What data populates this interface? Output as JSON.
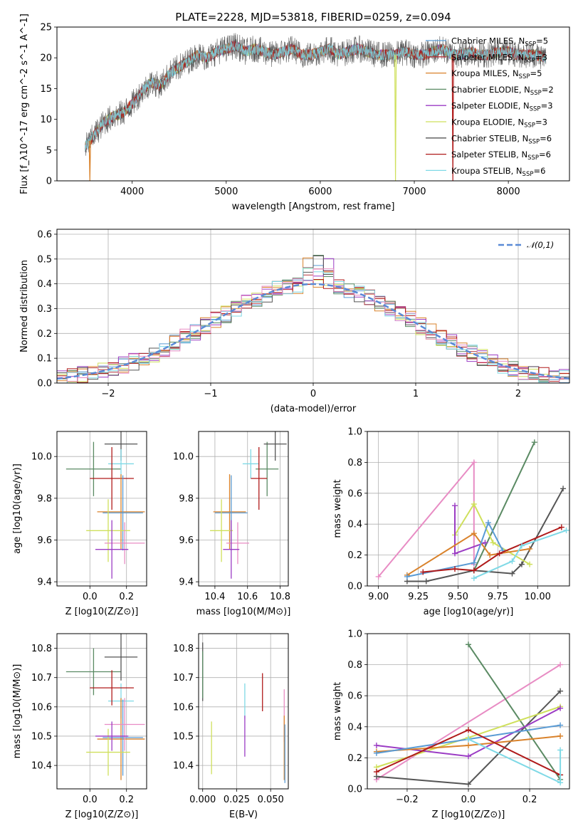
{
  "figure": {
    "title": "PLATE=2228, MJD=53818, FIBERID=0259, z=0.094"
  },
  "chart_data": [
    {
      "id": "spectrum",
      "type": "line",
      "xlabel": "wavelength [Angstrom, rest frame]",
      "ylabel": "Flux [f_λ10^-17 erg cm^-2 s^-1 A^-1]",
      "xlim": [
        3200,
        8650
      ],
      "ylim": [
        0,
        25
      ],
      "xticks": [
        4000,
        5000,
        6000,
        7000,
        8000
      ],
      "yticks": [
        0,
        5,
        10,
        15,
        20,
        25
      ],
      "legend_position": "right",
      "series": [
        {
          "name": "Chabrier MILES, N_SSP=5",
          "color": "#5a9bd4"
        },
        {
          "name": "Salpeter MILES, N_SSP=3",
          "color": "#b6343a"
        },
        {
          "name": "Kroupa MILES, N_SSP=5",
          "color": "#d9822b"
        },
        {
          "name": "Chabrier ELODIE, N_SSP=2",
          "color": "#5a8a63"
        },
        {
          "name": "Salpeter ELODIE, N_SSP=3",
          "color": "#9b3cc4"
        },
        {
          "name": "Kroupa ELODIE, N_SSP=3",
          "color": "#cfe05c"
        },
        {
          "name": "Chabrier STELIB, N_SSP=6",
          "color": "#555555"
        },
        {
          "name": "Salpeter STELIB, N_SSP=6",
          "color": "#b01a1a"
        },
        {
          "name": "Kroupa STELIB, N_SSP=6",
          "color": "#7fd9e6"
        }
      ],
      "envelope": {
        "x": [
          3500,
          3600,
          3700,
          3800,
          3900,
          4000,
          4100,
          4200,
          4300,
          4400,
          4500,
          4600,
          4700,
          4800,
          4900,
          5000,
          5100,
          5200,
          5300,
          5400,
          5500,
          5600,
          5700,
          5800,
          5900,
          6000,
          6100,
          6200,
          6300,
          6400,
          6500,
          6600,
          6700,
          6800,
          6900,
          7000,
          7100,
          7200,
          7300,
          7400,
          7500,
          7600,
          7700,
          7800,
          7900,
          8000,
          8100,
          8200,
          8300,
          8400
        ],
        "y": [
          5.5,
          7.5,
          9.5,
          10.5,
          11,
          12.5,
          14.5,
          16,
          15.5,
          17.5,
          18.5,
          19.5,
          20.5,
          20,
          21,
          21.5,
          22,
          21,
          21.5,
          21,
          20.5,
          21,
          21.5,
          20.5,
          20.5,
          21,
          21.5,
          20.5,
          21,
          21.5,
          21,
          20.5,
          20.5,
          20.5,
          21,
          20.5,
          20.5,
          21,
          21.5,
          20.5,
          20.5,
          21,
          20.5,
          20.5,
          21,
          21,
          20.5,
          20.5,
          20.5,
          20
        ]
      },
      "absorption_dips": [
        {
          "x": 6800,
          "y": 0
        },
        {
          "x": 7410,
          "y": 0
        },
        {
          "x": 3550,
          "y": 0
        }
      ]
    },
    {
      "id": "residuals",
      "type": "line",
      "xlabel": "(data-model)/error",
      "ylabel": "Normed distribution",
      "xlim": [
        -2.5,
        2.5
      ],
      "ylim": [
        0,
        0.62
      ],
      "xticks": [
        -2,
        -1,
        0,
        1,
        2
      ],
      "yticks": [
        0.0,
        0.1,
        0.2,
        0.3,
        0.4,
        0.5,
        0.6
      ],
      "legend_position": "top-right",
      "series": [
        {
          "name": "𝒩(0,1)",
          "style": "dashed",
          "color": "#5a8ad6",
          "mu": 0,
          "sigma": 1
        }
      ]
    },
    {
      "id": "age_vs_Z",
      "type": "scatter",
      "xlabel": "Z [log10(Z/Z⊙)]",
      "ylabel": "age  [log10(age/yr)]",
      "xlim": [
        -0.18,
        0.31
      ],
      "ylim": [
        9.38,
        10.12
      ],
      "xticks": [
        0.0,
        0.2
      ],
      "yticks": [
        9.4,
        9.6,
        9.8,
        10.0
      ],
      "points": [
        {
          "x": 0.02,
          "y": 9.94,
          "xerr": 0.15,
          "yerr": 0.13,
          "color": "#5a8a63"
        },
        {
          "x": 0.17,
          "y": 10.06,
          "xerr": 0.09,
          "yerr": 0.08,
          "color": "#555555"
        },
        {
          "x": 0.17,
          "y": 9.965,
          "xerr": 0.07,
          "yerr": 0.07,
          "color": "#7fd9e6"
        },
        {
          "x": 0.12,
          "y": 9.895,
          "xerr": 0.12,
          "yerr": 0.15,
          "color": "#b01a1a"
        },
        {
          "x": 0.17,
          "y": 9.735,
          "xerr": 0.13,
          "yerr": 0.18,
          "color": "#d9822b"
        },
        {
          "x": 0.18,
          "y": 9.73,
          "xerr": 0.11,
          "yerr": 0.18,
          "color": "#5a9bd4"
        },
        {
          "x": 0.1,
          "y": 9.645,
          "xerr": 0.12,
          "yerr": 0.15,
          "color": "#cfe05c"
        },
        {
          "x": 0.19,
          "y": 9.585,
          "xerr": 0.11,
          "yerr": 0.1,
          "color": "#e88cc4"
        },
        {
          "x": 0.12,
          "y": 9.555,
          "xerr": 0.09,
          "yerr": 0.14,
          "color": "#9b3cc4"
        }
      ]
    },
    {
      "id": "age_vs_mass",
      "type": "scatter",
      "xlabel": "mass [log10(M/M⊙)]",
      "ylabel": "",
      "xlim": [
        10.3,
        10.85
      ],
      "ylim": [
        9.38,
        10.12
      ],
      "xticks": [
        10.4,
        10.6,
        10.8
      ],
      "yticks": [
        9.4,
        9.6,
        9.8,
        10.0
      ],
      "points": [
        {
          "x": 10.72,
          "y": 9.94,
          "xerr": 0.07,
          "yerr": 0.13,
          "color": "#5a8a63"
        },
        {
          "x": 10.77,
          "y": 10.06,
          "xerr": 0.07,
          "yerr": 0.08,
          "color": "#555555"
        },
        {
          "x": 10.62,
          "y": 9.965,
          "xerr": 0.05,
          "yerr": 0.07,
          "color": "#7fd9e6"
        },
        {
          "x": 10.67,
          "y": 9.895,
          "xerr": 0.05,
          "yerr": 0.15,
          "color": "#b01a1a"
        },
        {
          "x": 10.49,
          "y": 9.735,
          "xerr": 0.1,
          "yerr": 0.18,
          "color": "#d9822b"
        },
        {
          "x": 10.5,
          "y": 9.73,
          "xerr": 0.1,
          "yerr": 0.18,
          "color": "#5a9bd4"
        },
        {
          "x": 10.44,
          "y": 9.645,
          "xerr": 0.07,
          "yerr": 0.15,
          "color": "#cfe05c"
        },
        {
          "x": 10.54,
          "y": 9.585,
          "xerr": 0.07,
          "yerr": 0.1,
          "color": "#e88cc4"
        },
        {
          "x": 10.5,
          "y": 9.555,
          "xerr": 0.05,
          "yerr": 0.14,
          "color": "#9b3cc4"
        }
      ]
    },
    {
      "id": "weights_vs_age",
      "type": "line",
      "xlabel": "age  [log10(age/yr)]",
      "ylabel": "mass weight",
      "xlim": [
        8.93,
        10.2
      ],
      "ylim": [
        0.0,
        1.0
      ],
      "xticks": [
        9.0,
        9.25,
        9.5,
        9.75,
        10.0
      ],
      "yticks": [
        0.0,
        0.2,
        0.4,
        0.6,
        0.8,
        1.0
      ],
      "series": [
        {
          "color": "#e88cc4",
          "x": [
            9.0,
            9.6,
            9.6
          ],
          "y": [
            0.06,
            0.8,
            0.14
          ]
        },
        {
          "color": "#5a8a63",
          "x": [
            9.6,
            9.98
          ],
          "y": [
            0.1,
            0.93
          ]
        },
        {
          "color": "#555555",
          "x": [
            9.18,
            9.3,
            9.6,
            9.84,
            9.9,
            10.16
          ],
          "y": [
            0.03,
            0.03,
            0.1,
            0.08,
            0.14,
            0.63
          ]
        },
        {
          "color": "#cfe05c",
          "x": [
            9.48,
            9.6,
            9.72,
            9.95
          ],
          "y": [
            0.33,
            0.53,
            0.28,
            0.14
          ]
        },
        {
          "color": "#9b3cc4",
          "x": [
            9.48,
            9.48,
            9.67
          ],
          "y": [
            0.52,
            0.21,
            0.28
          ]
        },
        {
          "color": "#d9822b",
          "x": [
            9.18,
            9.6,
            9.7,
            9.95
          ],
          "y": [
            0.07,
            0.34,
            0.2,
            0.24
          ]
        },
        {
          "color": "#5a9bd4",
          "x": [
            9.18,
            9.6,
            9.69,
            9.78
          ],
          "y": [
            0.06,
            0.15,
            0.41,
            0.23
          ]
        },
        {
          "color": "#b01a1a",
          "x": [
            9.28,
            9.48,
            9.6,
            9.76,
            10.15
          ],
          "y": [
            0.09,
            0.11,
            0.1,
            0.21,
            0.38
          ]
        },
        {
          "color": "#7fd9e6",
          "x": [
            9.6,
            9.84,
            9.9,
            10.18
          ],
          "y": [
            0.05,
            0.16,
            0.26,
            0.36
          ]
        }
      ]
    },
    {
      "id": "mass_vs_Z",
      "type": "scatter",
      "xlabel": "Z [log10(Z/Z⊙)]",
      "ylabel": "mass [log10(M/M⊙)]",
      "xlim": [
        -0.18,
        0.31
      ],
      "ylim": [
        10.32,
        10.85
      ],
      "xticks": [
        0.0,
        0.2
      ],
      "yticks": [
        10.4,
        10.5,
        10.6,
        10.7,
        10.8
      ],
      "points": [
        {
          "x": 0.02,
          "y": 10.72,
          "xerr": 0.15,
          "yerr": 0.08,
          "color": "#5a8a63"
        },
        {
          "x": 0.17,
          "y": 10.77,
          "xerr": 0.09,
          "yerr": 0.08,
          "color": "#555555"
        },
        {
          "x": 0.17,
          "y": 10.62,
          "xerr": 0.07,
          "yerr": 0.06,
          "color": "#7fd9e6"
        },
        {
          "x": 0.12,
          "y": 10.665,
          "xerr": 0.12,
          "yerr": 0.06,
          "color": "#b01a1a"
        },
        {
          "x": 0.17,
          "y": 10.49,
          "xerr": 0.13,
          "yerr": 0.14,
          "color": "#d9822b"
        },
        {
          "x": 0.18,
          "y": 10.495,
          "xerr": 0.11,
          "yerr": 0.13,
          "color": "#5a9bd4"
        },
        {
          "x": 0.1,
          "y": 10.445,
          "xerr": 0.12,
          "yerr": 0.08,
          "color": "#cfe05c"
        },
        {
          "x": 0.19,
          "y": 10.54,
          "xerr": 0.11,
          "yerr": 0.09,
          "color": "#e88cc4"
        },
        {
          "x": 0.12,
          "y": 10.5,
          "xerr": 0.09,
          "yerr": 0.05,
          "color": "#9b3cc4"
        }
      ]
    },
    {
      "id": "mass_vs_ebv",
      "type": "scatter",
      "xlabel": "E(B-V)",
      "ylabel": "",
      "xlim": [
        -0.003,
        0.063
      ],
      "ylim": [
        10.32,
        10.85
      ],
      "xticks": [
        0.0,
        0.025,
        0.05
      ],
      "yticks": [
        10.4,
        10.5,
        10.6,
        10.7,
        10.8
      ],
      "points": [
        {
          "x": 0.0,
          "y": 10.72,
          "yerr": 0.1,
          "color": "#555555"
        },
        {
          "x": 0.0,
          "y": 10.71,
          "yerr": 0.08,
          "color": "#5a8a63"
        },
        {
          "x": 0.0065,
          "y": 10.46,
          "yerr": 0.09,
          "color": "#cfe05c"
        },
        {
          "x": 0.031,
          "y": 10.62,
          "yerr": 0.06,
          "color": "#7fd9e6"
        },
        {
          "x": 0.031,
          "y": 10.5,
          "yerr": 0.07,
          "color": "#9b3cc4"
        },
        {
          "x": 0.044,
          "y": 10.65,
          "yerr": 0.065,
          "color": "#b01a1a"
        },
        {
          "x": 0.06,
          "y": 10.57,
          "yerr": 0.09,
          "color": "#e88cc4"
        },
        {
          "x": 0.06,
          "y": 10.46,
          "yerr": 0.11,
          "color": "#d9822b"
        },
        {
          "x": 0.0605,
          "y": 10.44,
          "yerr": 0.1,
          "color": "#5a9bd4"
        }
      ]
    },
    {
      "id": "weights_vs_Z",
      "type": "line",
      "xlabel": "Z [log10(Z/Z⊙)]",
      "ylabel": "mass weight",
      "xlim": [
        -0.33,
        0.33
      ],
      "ylim": [
        0.0,
        1.0
      ],
      "xticks": [
        -0.2,
        0.0,
        0.2
      ],
      "yticks": [
        0.0,
        0.2,
        0.4,
        0.6,
        0.8,
        1.0
      ],
      "series": [
        {
          "color": "#e88cc4",
          "x": [
            -0.3,
            0.3
          ],
          "y": [
            0.06,
            0.8
          ]
        },
        {
          "color": "#5a8a63",
          "x": [
            0.0,
            0.3
          ],
          "y": [
            0.93,
            0.06
          ]
        },
        {
          "color": "#555555",
          "x": [
            -0.3,
            0.0,
            0.3
          ],
          "y": [
            0.08,
            0.03,
            0.63
          ]
        },
        {
          "color": "#cfe05c",
          "x": [
            -0.3,
            0.0,
            0.3
          ],
          "y": [
            0.14,
            0.33,
            0.53
          ]
        },
        {
          "color": "#9b3cc4",
          "x": [
            -0.3,
            0.0,
            0.3
          ],
          "y": [
            0.28,
            0.21,
            0.52
          ]
        },
        {
          "color": "#d9822b",
          "x": [
            -0.3,
            0.0,
            0.3
          ],
          "y": [
            0.24,
            0.28,
            0.34
          ]
        },
        {
          "color": "#5a9bd4",
          "x": [
            -0.3,
            0.0,
            0.3
          ],
          "y": [
            0.23,
            0.32,
            0.41
          ]
        },
        {
          "color": "#b01a1a",
          "x": [
            -0.3,
            0.0,
            0.3
          ],
          "y": [
            0.11,
            0.38,
            0.09
          ]
        },
        {
          "color": "#7fd9e6",
          "x": [
            0.0,
            0.3,
            0.3
          ],
          "y": [
            0.32,
            0.04,
            0.25
          ]
        }
      ]
    }
  ]
}
